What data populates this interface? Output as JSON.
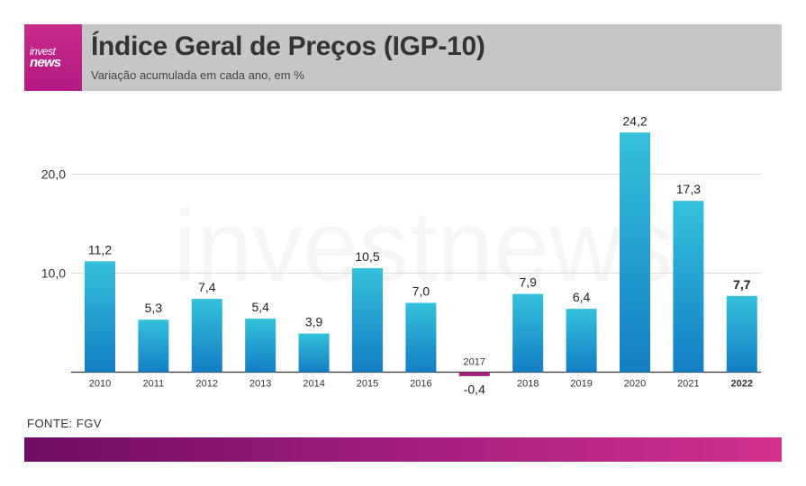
{
  "header": {
    "logo_top": "invest",
    "logo_bottom": "news",
    "title": "Índice Geral de Preços (IGP-10)",
    "subtitle": "Variação acumulada em cada ano, em %"
  },
  "watermark": "investnews",
  "footer": {
    "source": "FONTE: FGV"
  },
  "colors": {
    "bar_top": "#33c1db",
    "bar_bottom": "#147ec4",
    "negative_bar": "#a4207e",
    "header_bg": "#c6c6c6",
    "brand": "#c3268a"
  },
  "chart_data": {
    "type": "bar",
    "title": "Índice Geral de Preços (IGP-10)",
    "subtitle": "Variação acumulada em cada ano, em %",
    "categories": [
      "2010",
      "2011",
      "2012",
      "2013",
      "2014",
      "2015",
      "2016",
      "2017",
      "2018",
      "2019",
      "2020",
      "2021",
      "2022"
    ],
    "values": [
      11.2,
      5.3,
      7.4,
      5.4,
      3.9,
      10.5,
      7.0,
      -0.4,
      7.9,
      6.4,
      24.2,
      17.3,
      7.7
    ],
    "value_labels": [
      "11,2",
      "5,3",
      "7,4",
      "5,4",
      "3,9",
      "10,5",
      "7,0",
      "-0,4",
      "7,9",
      "6,4",
      "24,2",
      "17,3",
      "7,7"
    ],
    "highlight": "2022",
    "yticks": [
      10,
      20
    ],
    "ytick_labels": [
      "10,0",
      "20,0"
    ],
    "ylim": [
      -0.4,
      24.2
    ],
    "grid": true,
    "xlabel": "",
    "ylabel": ""
  }
}
